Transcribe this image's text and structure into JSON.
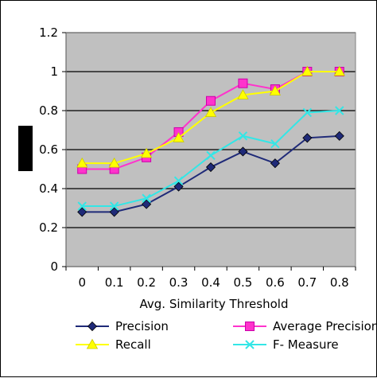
{
  "chart_data": {
    "type": "line",
    "xlabel": "Avg. Similarity Threshold",
    "ylabel": "",
    "categories": [
      "0",
      "0.1",
      "0.2",
      "0.3",
      "0.4",
      "0.5",
      "0.6",
      "0.7",
      "0.8"
    ],
    "ylim": [
      0,
      1.2
    ],
    "yticks": [
      "0",
      "0.2",
      "0.4",
      "0.6",
      "0.8",
      "1",
      "1.2"
    ],
    "grid": true,
    "legend_position": "bottom",
    "series": [
      {
        "name": "Precision",
        "color": "#1F2A78",
        "marker": "diamond",
        "values": [
          0.28,
          0.28,
          0.32,
          0.41,
          0.51,
          0.59,
          0.53,
          0.66,
          0.67
        ]
      },
      {
        "name": "Average Precision",
        "color": "#FF33CC",
        "marker": "square",
        "values": [
          0.5,
          0.5,
          0.56,
          0.69,
          0.85,
          0.94,
          0.91,
          1.0,
          1.0
        ]
      },
      {
        "name": "Recall",
        "color": "#FFFF00",
        "marker": "triangle",
        "values": [
          0.53,
          0.53,
          0.58,
          0.66,
          0.79,
          0.88,
          0.9,
          1.0,
          1.0
        ]
      },
      {
        "name": "F- Measure",
        "color": "#33E6E6",
        "marker": "x",
        "values": [
          0.31,
          0.31,
          0.35,
          0.44,
          0.57,
          0.67,
          0.63,
          0.79,
          0.8
        ]
      }
    ]
  }
}
